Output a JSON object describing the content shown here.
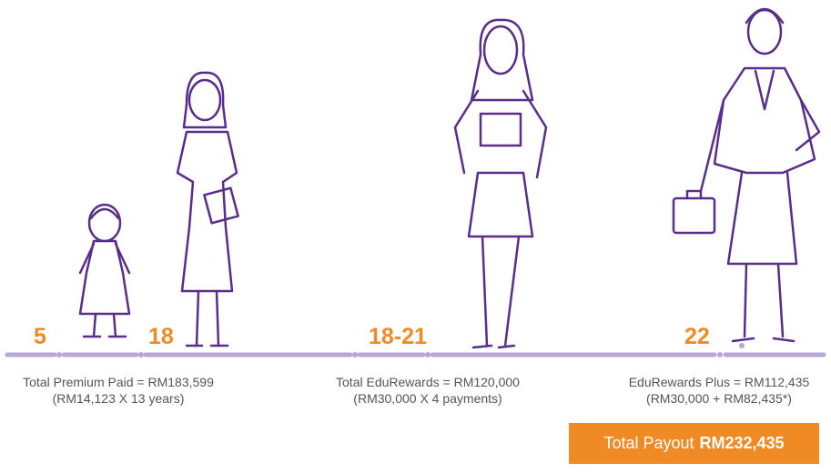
{
  "milestones": [
    {
      "age": "5"
    },
    {
      "age": "18"
    },
    {
      "age": "18-21"
    },
    {
      "age": "22"
    }
  ],
  "notes": [
    {
      "line1": "Total Premium Paid = RM183,599",
      "line2": "(RM14,123 X 13 years)"
    },
    {
      "line1": "Total EduRewards = RM120,000",
      "line2": "(RM30,000 X 4 payments)"
    },
    {
      "line1": "EduRewards Plus = RM112,435",
      "line2": "(RM30,000 + RM82,435*)"
    }
  ],
  "payout": {
    "label": "Total Payout",
    "amount": "RM232,435"
  }
}
